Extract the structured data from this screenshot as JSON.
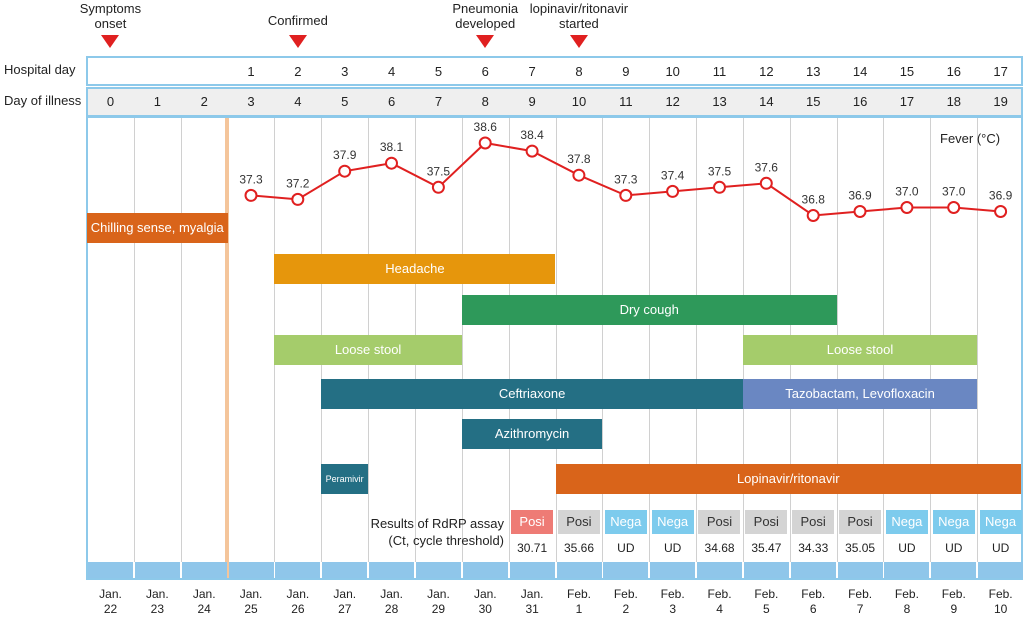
{
  "events": [
    {
      "label": "Symptoms\nonset",
      "col": 0
    },
    {
      "label": "Confirmed",
      "col": 4
    },
    {
      "label": "Pneumonia\ndeveloped",
      "col": 8
    },
    {
      "label": "lopinavir/ritonavir\nstarted",
      "col": 10
    }
  ],
  "rows": {
    "hospital_day_label": "Hospital day",
    "day_of_illness_label": "Day of illness",
    "hospital_days": [
      "",
      "",
      "",
      "1",
      "2",
      "3",
      "4",
      "5",
      "6",
      "7",
      "8",
      "9",
      "10",
      "11",
      "12",
      "13",
      "14",
      "15",
      "16",
      "17"
    ],
    "illness_days": [
      "0",
      "1",
      "2",
      "3",
      "4",
      "5",
      "6",
      "7",
      "8",
      "9",
      "10",
      "11",
      "12",
      "13",
      "14",
      "15",
      "16",
      "17",
      "18",
      "19"
    ]
  },
  "fever": {
    "label": "Fever (°C)",
    "line_color": "#e02020",
    "chart_data": {
      "type": "line",
      "x": [
        3,
        4,
        5,
        6,
        7,
        8,
        9,
        10,
        11,
        12,
        13,
        14,
        15,
        16,
        17,
        18,
        19
      ],
      "values": [
        37.3,
        37.2,
        37.9,
        38.1,
        37.5,
        38.6,
        38.4,
        37.8,
        37.3,
        37.4,
        37.5,
        37.6,
        36.8,
        36.9,
        37.0,
        37.0,
        36.9
      ],
      "value_labels": [
        "37.3",
        "37.2",
        "37.9",
        "38.1",
        "37.5",
        "38.6",
        "38.4",
        "37.8",
        "37.3",
        "37.4",
        "37.5",
        "37.6",
        "36.8",
        "36.9",
        "37.0",
        "37.0",
        "36.9"
      ]
    }
  },
  "bars": [
    {
      "name": "bar-chilling",
      "label": "Chilling sense, myalgia",
      "start": 0,
      "end": 3,
      "color": "#d9641a",
      "row": 0,
      "small": false
    },
    {
      "name": "bar-headache",
      "label": "Headache",
      "start": 4,
      "end": 10,
      "color": "#e6960c",
      "row": 1,
      "small": false
    },
    {
      "name": "bar-dry-cough",
      "label": "Dry cough",
      "start": 8,
      "end": 16,
      "color": "#2e995a",
      "row": 2,
      "small": false
    },
    {
      "name": "bar-loose-stool-1",
      "label": "Loose stool",
      "start": 4,
      "end": 8,
      "color": "#a5cc6b",
      "row": 3,
      "small": false
    },
    {
      "name": "bar-loose-stool-2",
      "label": "Loose stool",
      "start": 14,
      "end": 19,
      "color": "#a5cc6b",
      "row": 3,
      "small": false
    },
    {
      "name": "bar-ceftriaxone",
      "label": "Ceftriaxone",
      "start": 5,
      "end": 14,
      "color": "#246f84",
      "row": 4,
      "small": false
    },
    {
      "name": "bar-tazobactam",
      "label": "Tazobactam, Levofloxacin",
      "start": 14,
      "end": 19,
      "color": "#6a87c2",
      "row": 4,
      "small": false
    },
    {
      "name": "bar-azithromycin",
      "label": "Azithromycin",
      "start": 8,
      "end": 11,
      "color": "#246f84",
      "row": 5,
      "small": false
    },
    {
      "name": "bar-peramivir",
      "label": "Peramivir",
      "start": 5,
      "end": 6,
      "color": "#246f84",
      "row": 6,
      "small": true
    },
    {
      "name": "bar-lopinavir",
      "label": "Lopinavir/ritonavir",
      "start": 10,
      "end": 20,
      "color": "#d9641a",
      "row": 6,
      "small": false
    }
  ],
  "pcr": {
    "title_line1": "Results of RdRP assay",
    "title_line2": "(Ct, cycle threshold)",
    "results": [
      {
        "col": 9,
        "label": "Posi",
        "ct": "30.71",
        "color": "#ee7b75"
      },
      {
        "col": 10,
        "label": "Posi",
        "ct": "35.66",
        "color": "#d4d4d4"
      },
      {
        "col": 11,
        "label": "Nega",
        "ct": "UD",
        "color": "#7dcbed"
      },
      {
        "col": 12,
        "label": "Nega",
        "ct": "UD",
        "color": "#7dcbed"
      },
      {
        "col": 13,
        "label": "Posi",
        "ct": "34.68",
        "color": "#d4d4d4"
      },
      {
        "col": 14,
        "label": "Posi",
        "ct": "35.47",
        "color": "#d4d4d4"
      },
      {
        "col": 15,
        "label": "Posi",
        "ct": "34.33",
        "color": "#d4d4d4"
      },
      {
        "col": 16,
        "label": "Posi",
        "ct": "35.05",
        "color": "#d4d4d4"
      },
      {
        "col": 17,
        "label": "Nega",
        "ct": "UD",
        "color": "#7dcbed"
      },
      {
        "col": 18,
        "label": "Nega",
        "ct": "UD",
        "color": "#7dcbed"
      },
      {
        "col": 19,
        "label": "Nega",
        "ct": "UD",
        "color": "#7dcbed"
      }
    ]
  },
  "dates": [
    "Jan.\n22",
    "Jan.\n23",
    "Jan.\n24",
    "Jan.\n25",
    "Jan.\n26",
    "Jan.\n27",
    "Jan.\n28",
    "Jan.\n29",
    "Jan.\n30",
    "Jan.\n31",
    "Feb.\n1",
    "Feb.\n2",
    "Feb.\n3",
    "Feb.\n4",
    "Feb.\n5",
    "Feb.\n6",
    "Feb.\n7",
    "Feb.\n8",
    "Feb.\n9",
    "Feb.\n10"
  ]
}
